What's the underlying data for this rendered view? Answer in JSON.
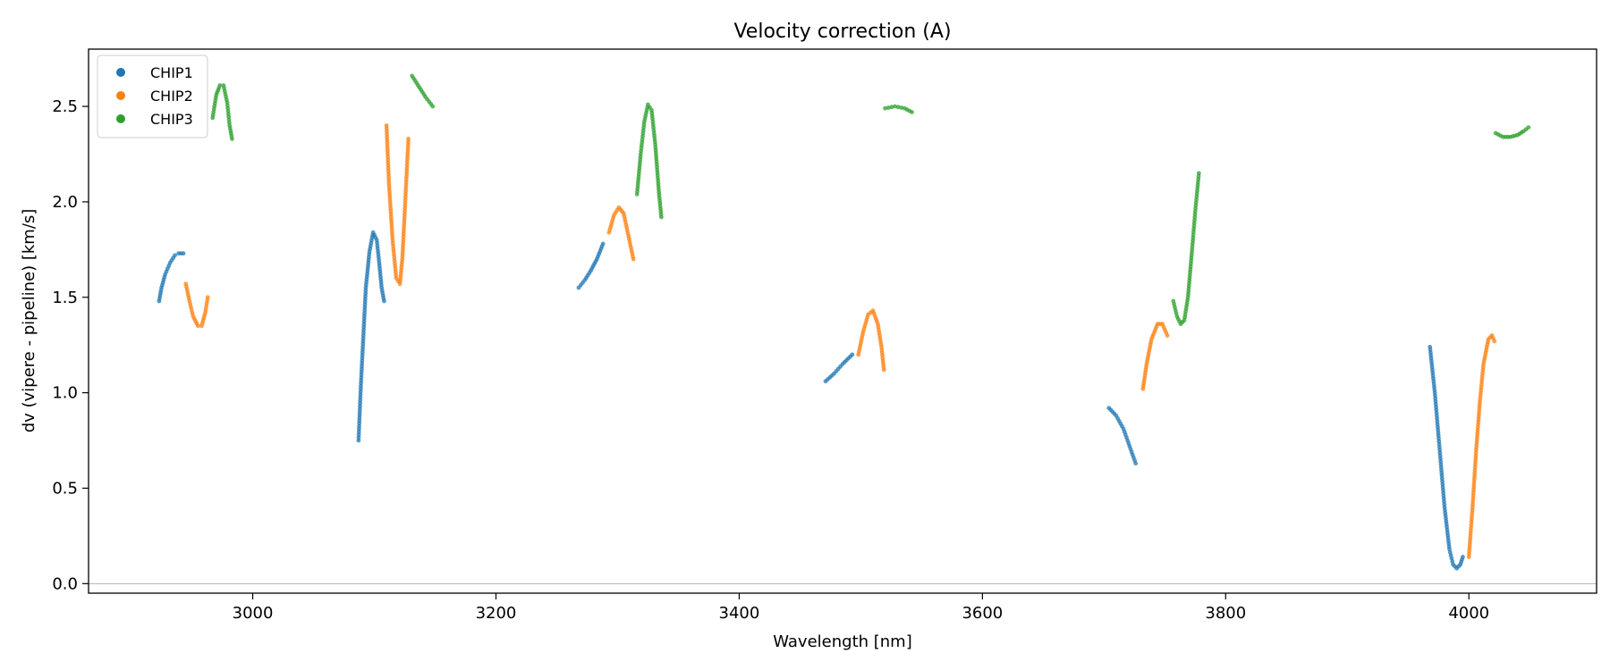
{
  "chart_data": {
    "type": "scatter",
    "title": "Velocity correction (A)",
    "xlabel": "Wavelength [nm]",
    "ylabel": "dv (vipere - pipeline) [km/s]",
    "xlim": [
      2865,
      4105
    ],
    "ylim": [
      -0.05,
      2.8
    ],
    "xticks": [
      3000,
      3200,
      3400,
      3600,
      3800,
      4000
    ],
    "yticks": [
      0.0,
      0.5,
      1.0,
      1.5,
      2.0,
      2.5
    ],
    "xtick_labels": [
      "3000",
      "3200",
      "3400",
      "3600",
      "3800",
      "4000"
    ],
    "ytick_labels": [
      "0.0",
      "0.5",
      "1.0",
      "1.5",
      "2.0",
      "2.5"
    ],
    "zero_line": true,
    "legend_position": "upper-left",
    "series": [
      {
        "name": "CHIP1",
        "color": "#1f77b4",
        "segments": [
          [
            [
              2923,
              1.48
            ],
            [
              2925,
              1.55
            ],
            [
              2928,
              1.62
            ],
            [
              2932,
              1.68
            ],
            [
              2936,
              1.72
            ],
            [
              2939,
              1.73
            ],
            [
              2943,
              1.73
            ]
          ],
          [
            [
              3087,
              0.75
            ],
            [
              3089,
              1.05
            ],
            [
              3091,
              1.3
            ],
            [
              3093,
              1.55
            ],
            [
              3096,
              1.74
            ],
            [
              3099,
              1.84
            ],
            [
              3102,
              1.8
            ],
            [
              3104,
              1.68
            ],
            [
              3106,
              1.55
            ],
            [
              3108,
              1.48
            ]
          ],
          [
            [
              3268,
              1.55
            ],
            [
              3273,
              1.59
            ],
            [
              3278,
              1.64
            ],
            [
              3283,
              1.7
            ],
            [
              3288,
              1.78
            ]
          ],
          [
            [
              3471,
              1.06
            ],
            [
              3478,
              1.1
            ],
            [
              3485,
              1.15
            ],
            [
              3493,
              1.2
            ]
          ],
          [
            [
              3704,
              0.92
            ],
            [
              3710,
              0.88
            ],
            [
              3716,
              0.81
            ],
            [
              3721,
              0.72
            ],
            [
              3726,
              0.63
            ]
          ],
          [
            [
              3968,
              1.24
            ],
            [
              3972,
              1.0
            ],
            [
              3976,
              0.7
            ],
            [
              3980,
              0.4
            ],
            [
              3984,
              0.18
            ],
            [
              3987,
              0.1
            ],
            [
              3990,
              0.08
            ],
            [
              3993,
              0.1
            ],
            [
              3995,
              0.14
            ]
          ]
        ]
      },
      {
        "name": "CHIP2",
        "color": "#ff7f0e",
        "segments": [
          [
            [
              2945,
              1.57
            ],
            [
              2948,
              1.48
            ],
            [
              2951,
              1.4
            ],
            [
              2955,
              1.35
            ],
            [
              2958,
              1.35
            ],
            [
              2961,
              1.42
            ],
            [
              2963,
              1.5
            ]
          ],
          [
            [
              3110,
              2.4
            ],
            [
              3112,
              2.1
            ],
            [
              3115,
              1.8
            ],
            [
              3118,
              1.6
            ],
            [
              3121,
              1.57
            ],
            [
              3123,
              1.7
            ],
            [
              3125,
              1.95
            ],
            [
              3128,
              2.33
            ]
          ],
          [
            [
              3293,
              1.84
            ],
            [
              3297,
              1.93
            ],
            [
              3301,
              1.97
            ],
            [
              3305,
              1.94
            ],
            [
              3309,
              1.82
            ],
            [
              3313,
              1.7
            ]
          ],
          [
            [
              3498,
              1.2
            ],
            [
              3502,
              1.32
            ],
            [
              3506,
              1.41
            ],
            [
              3510,
              1.43
            ],
            [
              3514,
              1.36
            ],
            [
              3517,
              1.24
            ],
            [
              3519,
              1.12
            ]
          ],
          [
            [
              3732,
              1.02
            ],
            [
              3735,
              1.15
            ],
            [
              3739,
              1.28
            ],
            [
              3744,
              1.36
            ],
            [
              3748,
              1.36
            ],
            [
              3752,
              1.3
            ]
          ],
          [
            [
              4000,
              0.14
            ],
            [
              4003,
              0.4
            ],
            [
              4006,
              0.7
            ],
            [
              4009,
              0.95
            ],
            [
              4012,
              1.15
            ],
            [
              4016,
              1.28
            ],
            [
              4019,
              1.3
            ],
            [
              4021,
              1.27
            ]
          ]
        ]
      },
      {
        "name": "CHIP3",
        "color": "#2ca02c",
        "segments": [
          [
            [
              2967,
              2.44
            ],
            [
              2970,
              2.56
            ],
            [
              2973,
              2.61
            ],
            [
              2976,
              2.61
            ],
            [
              2979,
              2.52
            ],
            [
              2981,
              2.4
            ],
            [
              2983,
              2.33
            ]
          ],
          [
            [
              3131,
              2.66
            ],
            [
              3136,
              2.61
            ],
            [
              3142,
              2.55
            ],
            [
              3148,
              2.5
            ]
          ],
          [
            [
              3316,
              2.04
            ],
            [
              3319,
              2.25
            ],
            [
              3322,
              2.42
            ],
            [
              3325,
              2.51
            ],
            [
              3328,
              2.48
            ],
            [
              3331,
              2.3
            ],
            [
              3334,
              2.05
            ],
            [
              3336,
              1.92
            ]
          ],
          [
            [
              3520,
              2.49
            ],
            [
              3528,
              2.5
            ],
            [
              3536,
              2.49
            ],
            [
              3542,
              2.47
            ]
          ],
          [
            [
              3757,
              1.48
            ],
            [
              3760,
              1.4
            ],
            [
              3763,
              1.36
            ],
            [
              3766,
              1.38
            ],
            [
              3769,
              1.5
            ],
            [
              3772,
              1.72
            ],
            [
              3775,
              1.95
            ],
            [
              3778,
              2.15
            ]
          ],
          [
            [
              4022,
              2.36
            ],
            [
              4028,
              2.34
            ],
            [
              4034,
              2.34
            ],
            [
              4040,
              2.35
            ],
            [
              4045,
              2.37
            ],
            [
              4049,
              2.39
            ]
          ]
        ]
      }
    ]
  }
}
